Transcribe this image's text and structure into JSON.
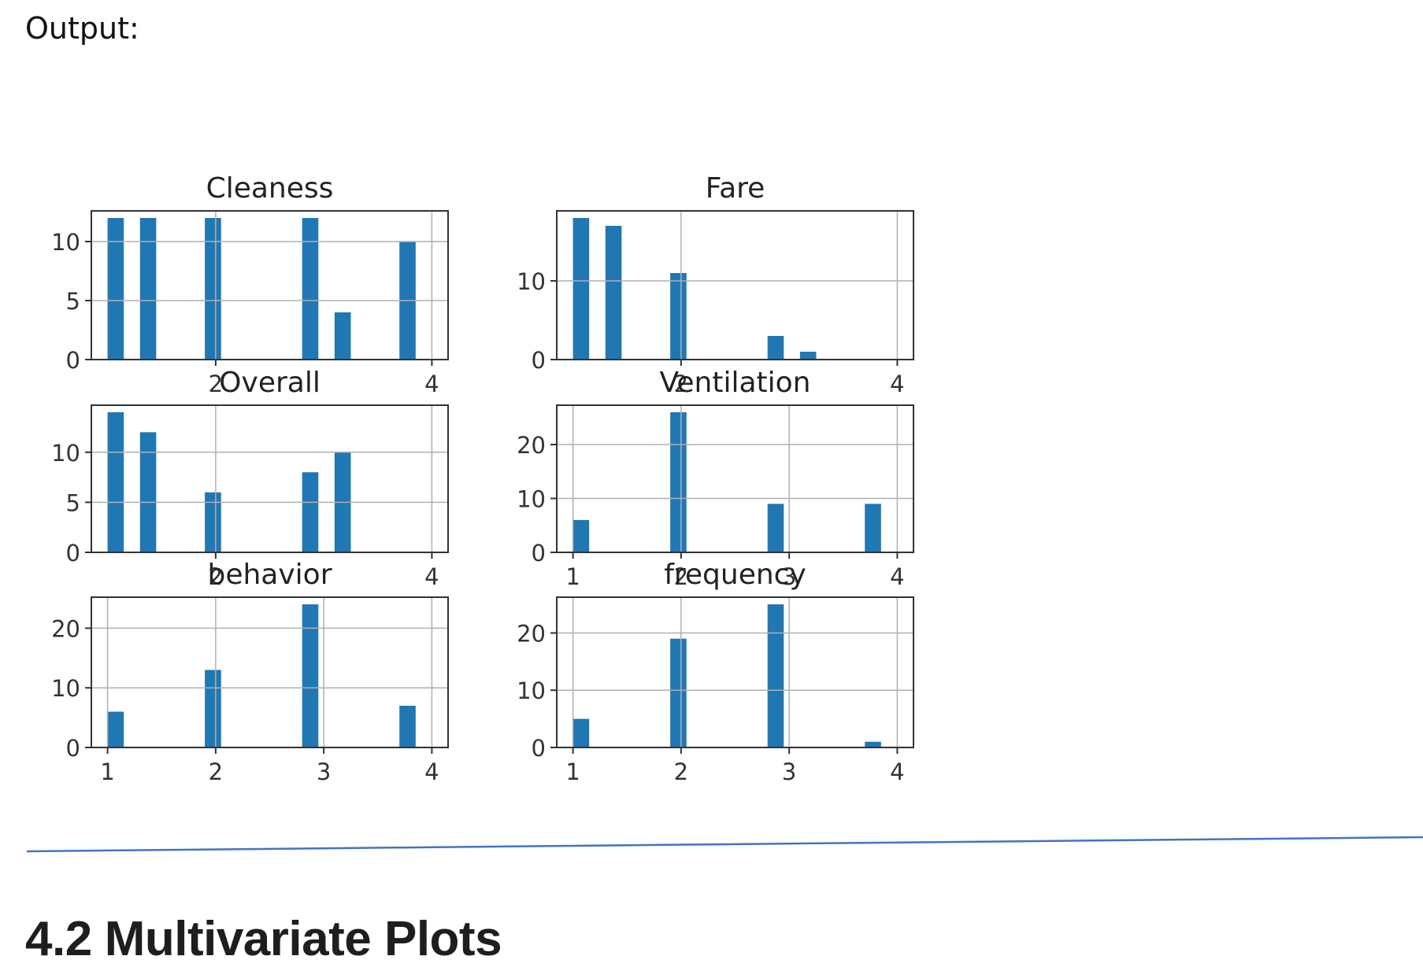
{
  "output_label": "Output:",
  "section": {
    "number": "4.2",
    "title": "Multivariate Plots"
  },
  "colors": {
    "bar": "#1f77b4",
    "grid": "#b0b0b0",
    "axes": "#333333",
    "text": "#333333",
    "divider": "#4472c4"
  },
  "chart_data": [
    {
      "type": "bar",
      "title": "Cleaness",
      "x": [
        1.15,
        1.45,
        1.75,
        2.05,
        2.35,
        2.65,
        2.95,
        3.25,
        3.55,
        3.85
      ],
      "values": [
        12,
        12,
        0,
        12,
        0,
        0,
        12,
        4,
        0,
        10
      ],
      "xlim": [
        0.85,
        4.15
      ],
      "ylim": [
        0,
        12.6
      ],
      "xticks": [
        "2",
        "4"
      ],
      "xtick_values": [
        2,
        4
      ],
      "yticks": [
        "0",
        "5",
        "10"
      ],
      "ytick_values": [
        0,
        5,
        10
      ],
      "grid": true
    },
    {
      "type": "bar",
      "title": "Fare",
      "x": [
        1.15,
        1.45,
        1.75,
        2.05,
        2.35,
        2.65,
        2.95,
        3.25,
        3.55,
        3.85
      ],
      "values": [
        18,
        17,
        0,
        11,
        0,
        0,
        3,
        1,
        0,
        0
      ],
      "xlim": [
        0.85,
        4.15
      ],
      "ylim": [
        0,
        18.9
      ],
      "xticks": [
        "2",
        "4"
      ],
      "xtick_values": [
        2,
        4
      ],
      "yticks": [
        "0",
        "10"
      ],
      "ytick_values": [
        0,
        10
      ],
      "grid": true
    },
    {
      "type": "bar",
      "title": "Overall",
      "x": [
        1.15,
        1.45,
        1.75,
        2.05,
        2.35,
        2.65,
        2.95,
        3.25,
        3.55,
        3.85
      ],
      "values": [
        14,
        12,
        0,
        6,
        0,
        0,
        8,
        10,
        0,
        0
      ],
      "xlim": [
        0.85,
        4.15
      ],
      "ylim": [
        0,
        14.7
      ],
      "xticks": [
        "2",
        "4"
      ],
      "xtick_values": [
        2,
        4
      ],
      "yticks": [
        "0",
        "5",
        "10"
      ],
      "ytick_values": [
        0,
        5,
        10
      ],
      "grid": true
    },
    {
      "type": "bar",
      "title": "Ventilation",
      "x": [
        1.15,
        1.45,
        1.75,
        2.05,
        2.35,
        2.65,
        2.95,
        3.25,
        3.55,
        3.85
      ],
      "values": [
        6,
        0,
        0,
        26,
        0,
        0,
        9,
        0,
        0,
        9
      ],
      "xlim": [
        0.85,
        4.15
      ],
      "ylim": [
        0,
        27.3
      ],
      "xticks": [
        "1",
        "2",
        "3",
        "4"
      ],
      "xtick_values": [
        1,
        2,
        3,
        4
      ],
      "yticks": [
        "0",
        "10",
        "20"
      ],
      "ytick_values": [
        0,
        10,
        20
      ],
      "grid": true
    },
    {
      "type": "bar",
      "title": "behavior",
      "x": [
        1.15,
        1.45,
        1.75,
        2.05,
        2.35,
        2.65,
        2.95,
        3.25,
        3.55,
        3.85
      ],
      "values": [
        6,
        0,
        0,
        13,
        0,
        0,
        24,
        0,
        0,
        7
      ],
      "xlim": [
        0.85,
        4.15
      ],
      "ylim": [
        0,
        25.2
      ],
      "xticks": [
        "1",
        "2",
        "3",
        "4"
      ],
      "xtick_values": [
        1,
        2,
        3,
        4
      ],
      "yticks": [
        "0",
        "10",
        "20"
      ],
      "ytick_values": [
        0,
        10,
        20
      ],
      "grid": true
    },
    {
      "type": "bar",
      "title": "frequency",
      "x": [
        1.15,
        1.45,
        1.75,
        2.05,
        2.35,
        2.65,
        2.95,
        3.25,
        3.55,
        3.85
      ],
      "values": [
        5,
        0,
        0,
        19,
        0,
        0,
        25,
        0,
        0,
        1
      ],
      "xlim": [
        0.85,
        4.15
      ],
      "ylim": [
        0,
        26.25
      ],
      "xticks": [
        "1",
        "2",
        "3",
        "4"
      ],
      "xtick_values": [
        1,
        2,
        3,
        4
      ],
      "yticks": [
        "0",
        "10",
        "20"
      ],
      "ytick_values": [
        0,
        10,
        20
      ],
      "grid": true
    }
  ]
}
